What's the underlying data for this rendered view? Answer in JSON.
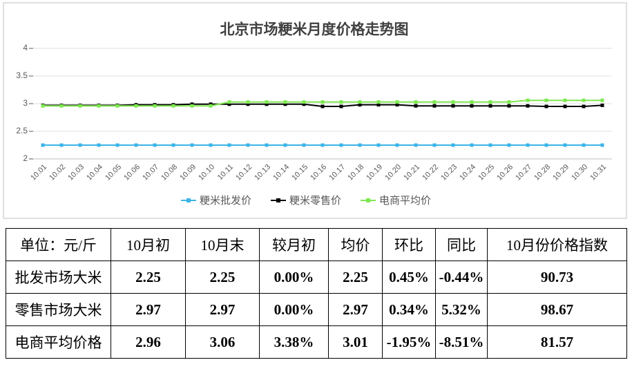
{
  "chart_data": {
    "type": "line",
    "title": "北京市场粳米月度价格走势图",
    "categories": [
      "10.01",
      "10.02",
      "10.03",
      "10.04",
      "10.05",
      "10.06",
      "10.07",
      "10.08",
      "10.09",
      "10.10",
      "10.11",
      "10.12",
      "10.13",
      "10.14",
      "10.15",
      "10.16",
      "10.17",
      "10.18",
      "10.19",
      "10.20",
      "10.21",
      "10.22",
      "10.23",
      "10.24",
      "10.25",
      "10.26",
      "10.27",
      "10.28",
      "10.29",
      "10.30",
      "10.31"
    ],
    "series": [
      {
        "name": "粳米批发价",
        "color": "#3cb4e8",
        "values": [
          2.25,
          2.25,
          2.25,
          2.25,
          2.25,
          2.25,
          2.25,
          2.25,
          2.25,
          2.25,
          2.25,
          2.25,
          2.25,
          2.25,
          2.25,
          2.25,
          2.25,
          2.25,
          2.25,
          2.25,
          2.25,
          2.25,
          2.25,
          2.25,
          2.25,
          2.25,
          2.25,
          2.25,
          2.25,
          2.25,
          2.25
        ]
      },
      {
        "name": "粳米零售价",
        "color": "#000000",
        "values": [
          2.97,
          2.97,
          2.97,
          2.97,
          2.97,
          2.98,
          2.98,
          2.98,
          2.99,
          2.99,
          2.99,
          2.99,
          2.99,
          2.99,
          2.99,
          2.95,
          2.95,
          2.98,
          2.98,
          2.98,
          2.96,
          2.96,
          2.96,
          2.96,
          2.96,
          2.96,
          2.96,
          2.95,
          2.95,
          2.95,
          2.97
        ]
      },
      {
        "name": "电商平均价",
        "color": "#7ee84f",
        "values": [
          2.96,
          2.96,
          2.96,
          2.96,
          2.96,
          2.96,
          2.96,
          2.96,
          2.96,
          2.96,
          3.03,
          3.03,
          3.03,
          3.03,
          3.03,
          3.03,
          3.03,
          3.03,
          3.03,
          3.03,
          3.03,
          3.03,
          3.03,
          3.03,
          3.03,
          3.03,
          3.06,
          3.06,
          3.06,
          3.06,
          3.06
        ]
      }
    ],
    "ylim": [
      2,
      4
    ],
    "yticks": [
      2,
      2.5,
      3,
      3.5,
      4
    ],
    "grid": true,
    "legend": "bottom"
  },
  "table": {
    "header": [
      "单位：元/斤",
      "10月初",
      "10月末",
      "较月初",
      "均价",
      "环比",
      "同比",
      "10月份价格指数"
    ],
    "rows": [
      [
        "批发市场大米",
        "2.25",
        "2.25",
        "0.00%",
        "2.25",
        "0.45%",
        "-0.44%",
        "90.73"
      ],
      [
        "零售市场大米",
        "2.97",
        "2.97",
        "0.00%",
        "2.97",
        "0.34%",
        "5.32%",
        "98.67"
      ],
      [
        "电商平均价格",
        "2.96",
        "3.06",
        "3.38%",
        "3.01",
        "-1.95%",
        "-8.51%",
        "81.57"
      ]
    ]
  }
}
